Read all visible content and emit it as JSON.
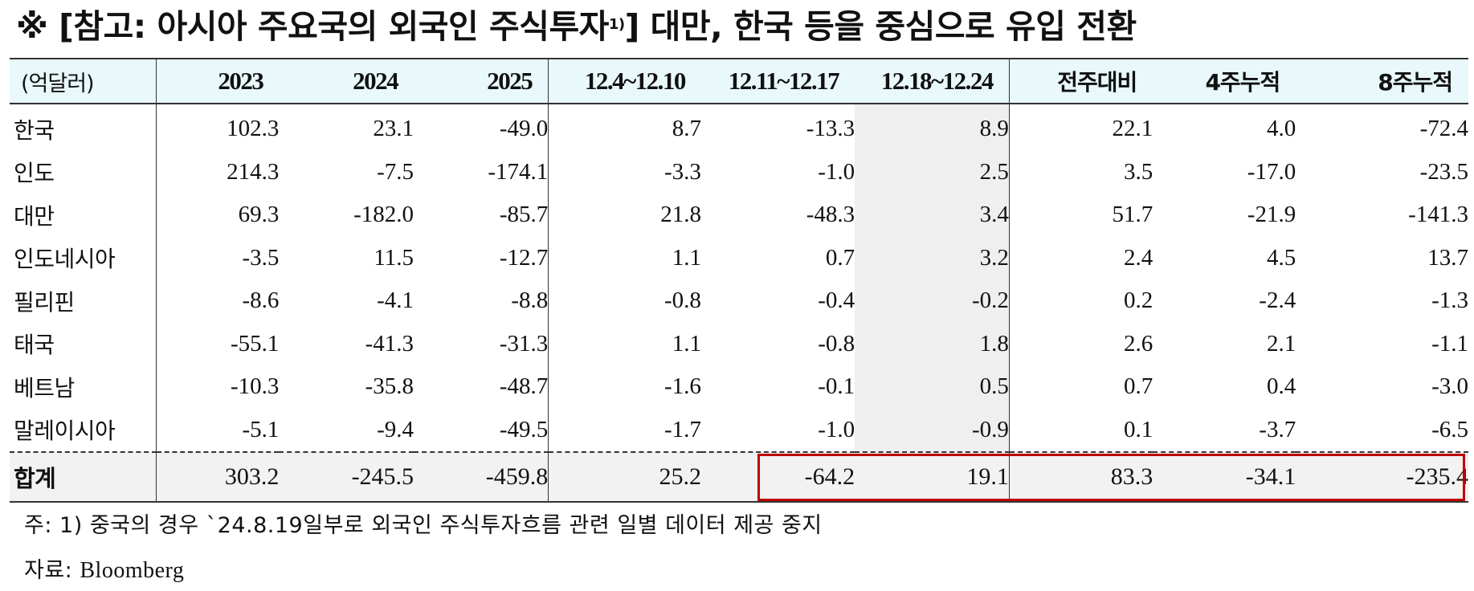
{
  "title": {
    "main": "※ [참고: 아시아 주요국의 외국인 주식투자",
    "sup": "1)",
    "rest": "] 대만, 한국 등을 중심으로 유입 전환"
  },
  "table": {
    "unit_label": "(억달러)",
    "headers": [
      "2023",
      "2024",
      "2025",
      "12.4~12.10",
      "12.11~12.17",
      "12.18~12.24",
      "전주대비",
      "4주누적",
      "8주누적"
    ],
    "rows": [
      {
        "name": "한국",
        "values": [
          "102.3",
          "23.1",
          "-49.0",
          "8.7",
          "-13.3",
          "8.9",
          "22.1",
          "4.0",
          "-72.4"
        ]
      },
      {
        "name": "인도",
        "values": [
          "214.3",
          "-7.5",
          "-174.1",
          "-3.3",
          "-1.0",
          "2.5",
          "3.5",
          "-17.0",
          "-23.5"
        ]
      },
      {
        "name": "대만",
        "values": [
          "69.3",
          "-182.0",
          "-85.7",
          "21.8",
          "-48.3",
          "3.4",
          "51.7",
          "-21.9",
          "-141.3"
        ]
      },
      {
        "name": "인도네시아",
        "values": [
          "-3.5",
          "11.5",
          "-12.7",
          "1.1",
          "0.7",
          "3.2",
          "2.4",
          "4.5",
          "13.7"
        ]
      },
      {
        "name": "필리핀",
        "values": [
          "-8.6",
          "-4.1",
          "-8.8",
          "-0.8",
          "-0.4",
          "-0.2",
          "0.2",
          "-2.4",
          "-1.3"
        ]
      },
      {
        "name": "태국",
        "values": [
          "-55.1",
          "-41.3",
          "-31.3",
          "1.1",
          "-0.8",
          "1.8",
          "2.6",
          "2.1",
          "-1.1"
        ]
      },
      {
        "name": "베트남",
        "values": [
          "-10.3",
          "-35.8",
          "-48.7",
          "-1.6",
          "-0.1",
          "0.5",
          "0.7",
          "0.4",
          "-3.0"
        ]
      },
      {
        "name": "말레이시아",
        "values": [
          "-5.1",
          "-9.4",
          "-49.5",
          "-1.7",
          "-1.0",
          "-0.9",
          "0.1",
          "-3.7",
          "-6.5"
        ]
      }
    ],
    "total": {
      "name": "합계",
      "values": [
        "303.2",
        "-245.5",
        "-459.8",
        "25.2",
        "-64.2",
        "19.1",
        "83.3",
        "-34.1",
        "-235.4"
      ]
    }
  },
  "notes": {
    "note1": "주: 1) 중국의 경우 `24.8.19일부로 외국인 주식투자흐름 관련 일별 데이터 제공 중지",
    "source_label": "자료: ",
    "source_value": "Bloomberg"
  },
  "colors": {
    "header_bg": "#e8f8fb",
    "highlight_border": "#c00000",
    "shaded_column": "#efefef",
    "total_row_bg": "#f2f2f2"
  }
}
